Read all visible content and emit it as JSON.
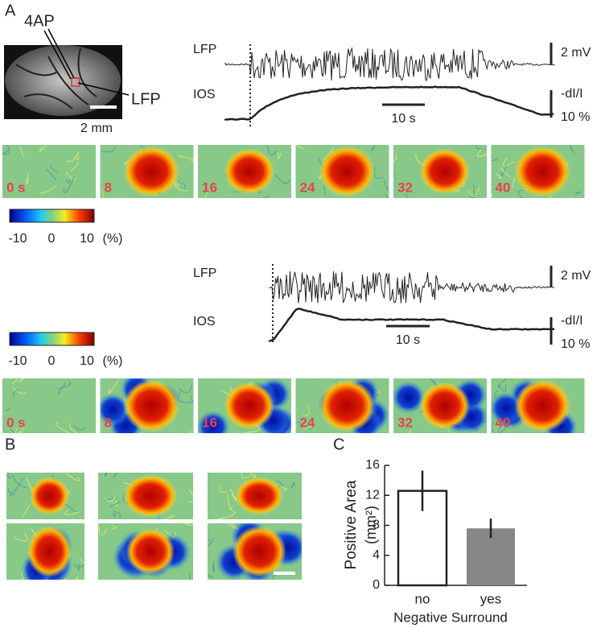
{
  "panel_labels": [
    "A",
    "B",
    "C"
  ],
  "panel_a": {
    "image_labels": {
      "drug": "4AP",
      "electrode": "LFP",
      "scale": "2 mm"
    },
    "recordings": [
      {
        "lfp_label": "LFP",
        "ios_label": "IOS",
        "lfp_scale": "2 mV",
        "ios_scale": [
          "-dI/I",
          "10 %"
        ],
        "time_scale": "10 s",
        "colorbar": [
          "-10",
          "0",
          "10",
          "(%)"
        ],
        "frames": [
          "0 s",
          "8",
          "16",
          "24",
          "32",
          "40"
        ]
      },
      {
        "lfp_label": "LFP",
        "ios_label": "IOS",
        "lfp_scale": "2 mV",
        "ios_scale": [
          "-dI/I",
          "10 %"
        ],
        "time_scale": "10 s",
        "colorbar": [
          "-10",
          "0",
          "10",
          "(%)"
        ],
        "frames": [
          "0 s",
          "8",
          "16",
          "24",
          "32",
          "40"
        ]
      }
    ]
  },
  "chart_data": {
    "type": "bar",
    "y_label": [
      "Positive Area",
      "(mm²)"
    ],
    "x_label": "Negative Surround",
    "categories": [
      "no",
      "yes"
    ],
    "values": [
      12.6,
      7.6
    ],
    "errors": [
      2.7,
      1.3
    ],
    "colors": [
      "#ffffff",
      "#878787"
    ],
    "ylim": [
      0,
      16
    ],
    "yticks": [
      0,
      4,
      8,
      12,
      16
    ]
  }
}
